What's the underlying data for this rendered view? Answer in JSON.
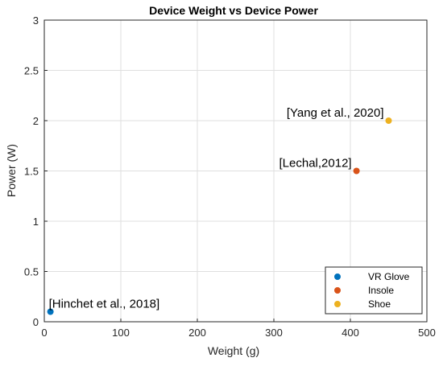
{
  "chart_data": {
    "type": "scatter",
    "title": "Device Weight vs Device Power",
    "xlabel": "Weight (g)",
    "ylabel": "Power (W)",
    "xlim": [
      0,
      500
    ],
    "ylim": [
      0,
      3
    ],
    "xticks": [
      0,
      100,
      200,
      300,
      400,
      500
    ],
    "yticks": [
      0,
      0.5,
      1,
      1.5,
      2,
      2.5,
      3
    ],
    "grid": true,
    "legend_position": "bottom-right",
    "series": [
      {
        "name": "VR Glove",
        "color": "#0072BD",
        "x": 8,
        "y": 0.1,
        "annotation": "[Hinchet et al., 2018]"
      },
      {
        "name": "Insole",
        "color": "#D95319",
        "x": 408,
        "y": 1.5,
        "annotation": "[Lechal,2012]"
      },
      {
        "name": "Shoe",
        "color": "#EDB120",
        "x": 450,
        "y": 2.0,
        "annotation": "[Yang et al., 2020]"
      }
    ]
  }
}
